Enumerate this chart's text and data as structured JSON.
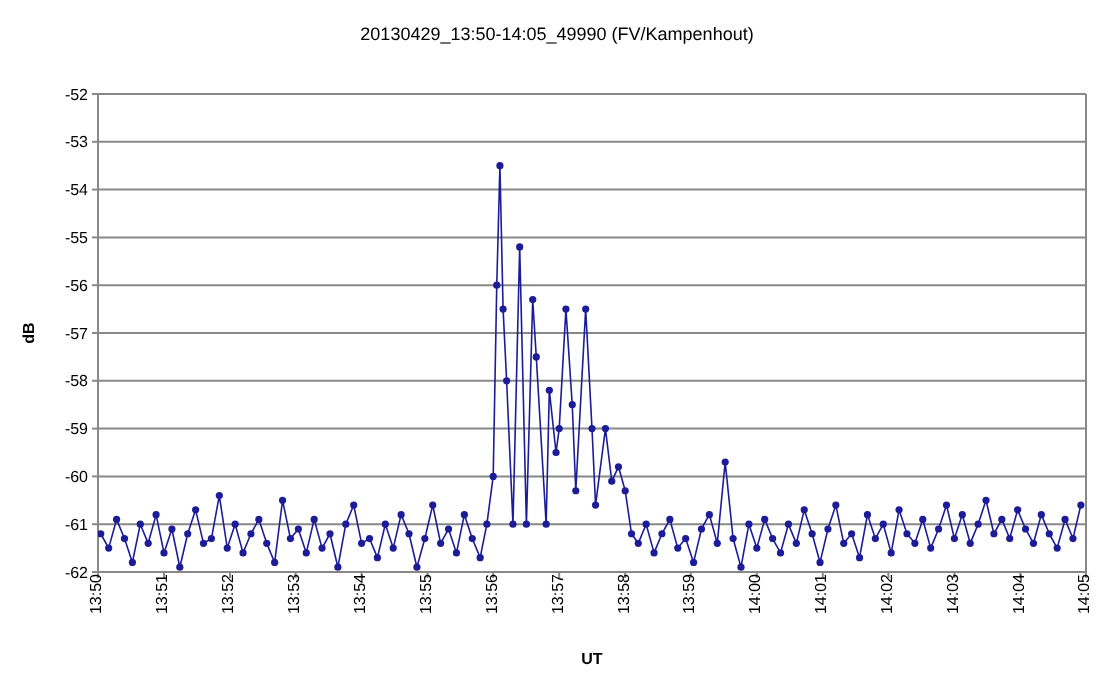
{
  "chart_data": {
    "type": "line",
    "title": "20130429_13:50-14:05_49990 (FV/Kampenhout)",
    "xlabel": "UT",
    "ylabel": "dB",
    "x": [
      13.834,
      13.836,
      13.838,
      13.84,
      13.842,
      13.844,
      13.846,
      13.848,
      13.85,
      13.852,
      13.854,
      13.856,
      13.858,
      13.86,
      13.862,
      13.864,
      13.866,
      13.868,
      13.87,
      13.872,
      13.874,
      13.876,
      13.878,
      13.88,
      13.882,
      13.884,
      13.886,
      13.888,
      13.89,
      13.892,
      13.894,
      13.896,
      13.898,
      13.9,
      13.902,
      13.904,
      13.906,
      13.908,
      13.91,
      13.912,
      13.914,
      13.916,
      13.918,
      13.92,
      13.922,
      13.924,
      13.926,
      13.928,
      13.93,
      13.9317,
      13.9333,
      13.9342,
      13.935,
      13.9358,
      13.9367,
      13.9383,
      13.94,
      13.9417,
      13.9433,
      13.9442,
      13.9467,
      13.9475,
      13.9492,
      13.95,
      13.9517,
      13.9533,
      13.9542,
      13.9567,
      13.9583,
      13.9592,
      13.9617,
      13.9633,
      13.965,
      13.9667,
      13.9683,
      13.97,
      13.972,
      13.974,
      13.976,
      13.978,
      13.98,
      13.982,
      13.984,
      13.986,
      13.988,
      13.99,
      13.992,
      13.994,
      13.996,
      13.998,
      14.0,
      14.002,
      14.004,
      14.006,
      14.008,
      14.01,
      14.012,
      14.014,
      14.016,
      14.018,
      14.02,
      14.022,
      14.024,
      14.026,
      14.028,
      14.03,
      14.032,
      14.034,
      14.036,
      14.038,
      14.04,
      14.042,
      14.044,
      14.046,
      14.048,
      14.05,
      14.052,
      14.054,
      14.056,
      14.058,
      14.06,
      14.062,
      14.064,
      14.066,
      14.068,
      14.07,
      14.072,
      14.074,
      14.076,
      14.078,
      14.08,
      14.082
    ],
    "series": [
      {
        "color": "#1c1c99",
        "values": [
          -61.2,
          -61.5,
          -60.9,
          -61.3,
          -61.8,
          -61.0,
          -61.4,
          -60.8,
          -61.6,
          -61.1,
          -61.9,
          -61.2,
          -60.7,
          -61.4,
          -61.3,
          -60.4,
          -61.5,
          -61.0,
          -61.6,
          -61.2,
          -60.9,
          -61.4,
          -61.8,
          -60.5,
          -61.3,
          -61.1,
          -61.6,
          -60.9,
          -61.5,
          -61.2,
          -61.9,
          -61.0,
          -60.6,
          -61.4,
          -61.3,
          -61.7,
          -61.0,
          -61.5,
          -60.8,
          -61.2,
          -61.9,
          -61.3,
          -60.6,
          -61.4,
          -61.1,
          -61.6,
          -60.8,
          -61.3,
          -61.7,
          -61.0,
          -60.0,
          -56.0,
          -53.5,
          -56.5,
          -58.0,
          -61.0,
          -55.2,
          -61.0,
          -56.3,
          -57.5,
          -61.0,
          -58.2,
          -59.5,
          -59.0,
          -56.5,
          -58.5,
          -60.3,
          -56.5,
          -59.0,
          -60.6,
          -59.0,
          -60.1,
          -59.8,
          -60.3,
          -61.2,
          -61.4,
          -61.0,
          -61.6,
          -61.2,
          -60.9,
          -61.5,
          -61.3,
          -61.8,
          -61.1,
          -60.8,
          -61.4,
          -59.7,
          -61.3,
          -61.9,
          -61.0,
          -61.5,
          -60.9,
          -61.3,
          -61.6,
          -61.0,
          -61.4,
          -60.7,
          -61.2,
          -61.8,
          -61.1,
          -60.6,
          -61.4,
          -61.2,
          -61.7,
          -60.8,
          -61.3,
          -61.0,
          -61.6,
          -60.7,
          -61.2,
          -61.4,
          -60.9,
          -61.5,
          -61.1,
          -60.6,
          -61.3,
          -60.8,
          -61.4,
          -61.0,
          -60.5,
          -61.2,
          -60.9,
          -61.3,
          -60.7,
          -61.1,
          -61.4,
          -60.8,
          -61.2,
          -61.5,
          -60.9,
          -61.3,
          -60.6
        ]
      }
    ],
    "xlim": [
      13.8333,
      14.0833
    ],
    "xticks": [
      {
        "value": 13.8333,
        "label": "13:50"
      },
      {
        "value": 13.85,
        "label": "13:51"
      },
      {
        "value": 13.8667,
        "label": "13:52"
      },
      {
        "value": 13.8833,
        "label": "13:53"
      },
      {
        "value": 13.9,
        "label": "13:54"
      },
      {
        "value": 13.9167,
        "label": "13:55"
      },
      {
        "value": 13.9333,
        "label": "13:56"
      },
      {
        "value": 13.95,
        "label": "13:57"
      },
      {
        "value": 13.9667,
        "label": "13:58"
      },
      {
        "value": 13.9833,
        "label": "13:59"
      },
      {
        "value": 14.0,
        "label": "14:00"
      },
      {
        "value": 14.0167,
        "label": "14:01"
      },
      {
        "value": 14.0333,
        "label": "14:02"
      },
      {
        "value": 14.05,
        "label": "14:03"
      },
      {
        "value": 14.0667,
        "label": "14:04"
      },
      {
        "value": 14.0833,
        "label": "14:05"
      }
    ],
    "ylim": [
      -62,
      -52
    ],
    "yticks": [
      -62,
      -61,
      -60,
      -59,
      -58,
      -57,
      -56,
      -55,
      -54,
      -53,
      -52
    ],
    "grid": "y",
    "marker": "circle",
    "line_style": "solid"
  }
}
